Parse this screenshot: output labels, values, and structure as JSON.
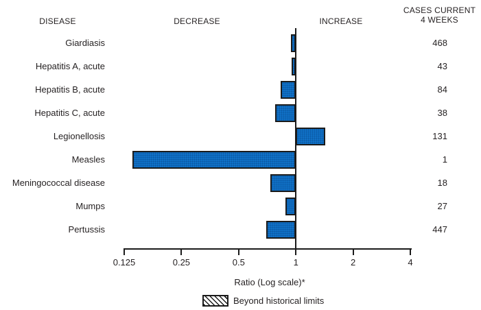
{
  "colors": {
    "bar_fill": "#1072c8",
    "bar_dot": "#0a55a0",
    "bar_border": "#1a1a1a",
    "text": "#231f20",
    "axis": "#1a1a1a"
  },
  "columns": {
    "disease": "DISEASE",
    "decrease": "DECREASE",
    "increase": "INCREASE",
    "cases": "CASES CURRENT\n4 WEEKS"
  },
  "chart_data": {
    "type": "bar",
    "orientation": "horizontal",
    "x_scale": "log2",
    "xlim": [
      0.125,
      4
    ],
    "baseline_ratio": 1,
    "x_ticks": [
      "0.125",
      "0.25",
      "0.5",
      "1",
      "2",
      "4"
    ],
    "xlabel": "Ratio (Log scale)*",
    "grid": false,
    "legend_position": "bottom",
    "legend": [
      {
        "label": "Beyond historical limits",
        "swatch": "hatched"
      }
    ],
    "rows": [
      {
        "disease": "Giardiasis",
        "ratio": 0.94,
        "cases": "468",
        "beyond_historical_limits": false
      },
      {
        "disease": "Hepatitis A, acute",
        "ratio": 0.95,
        "cases": "43",
        "beyond_historical_limits": false
      },
      {
        "disease": "Hepatitis B, acute",
        "ratio": 0.83,
        "cases": "84",
        "beyond_historical_limits": false
      },
      {
        "disease": "Hepatitis C, acute",
        "ratio": 0.78,
        "cases": "38",
        "beyond_historical_limits": false
      },
      {
        "disease": "Legionellosis",
        "ratio": 1.43,
        "cases": "131",
        "beyond_historical_limits": false
      },
      {
        "disease": "Measles",
        "ratio": 0.138,
        "cases": "1",
        "beyond_historical_limits": false
      },
      {
        "disease": "Meningococcal disease",
        "ratio": 0.735,
        "cases": "18",
        "beyond_historical_limits": false
      },
      {
        "disease": "Mumps",
        "ratio": 0.88,
        "cases": "27",
        "beyond_historical_limits": false
      },
      {
        "disease": "Pertussis",
        "ratio": 0.7,
        "cases": "447",
        "beyond_historical_limits": false
      }
    ]
  }
}
